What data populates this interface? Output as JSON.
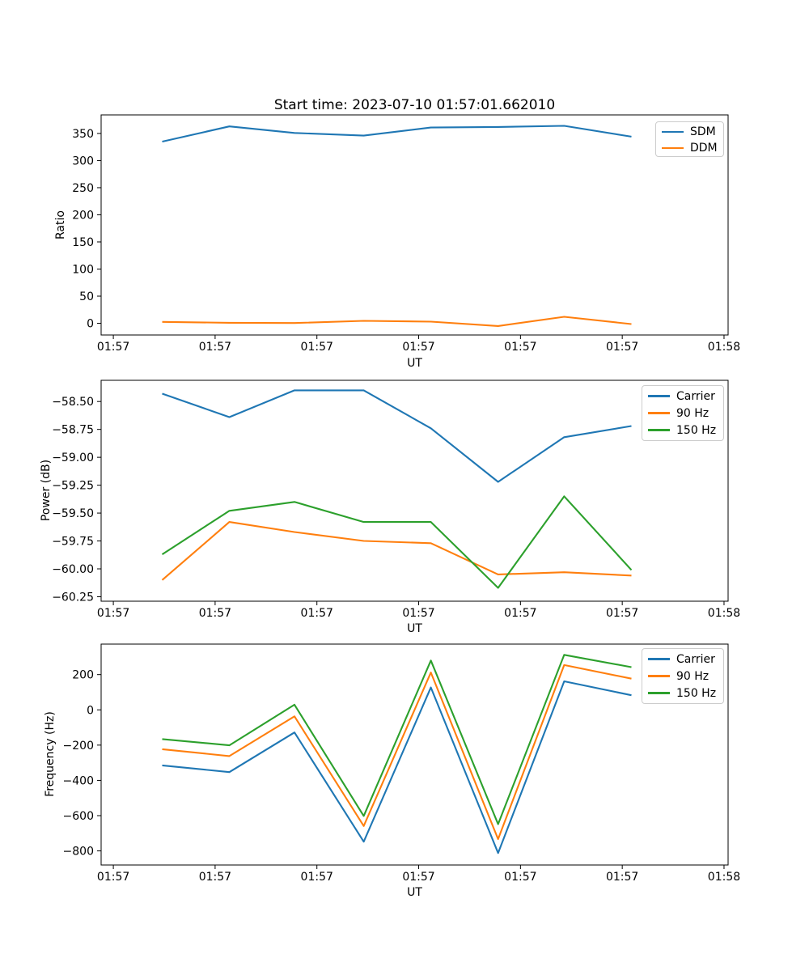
{
  "figure": {
    "title": "Start time: 2023-07-10 01:57:01.662010",
    "background": "#ffffff"
  },
  "colors": {
    "carrier_blue": "#1f77b4",
    "orange_90hz": "#ff7f0e",
    "green_150hz": "#2ca02c",
    "axis": "#000000",
    "legend_border": "#cccccc"
  },
  "chart_data": [
    {
      "id": "ratio",
      "type": "line",
      "title": "Start time: 2023-07-10 01:57:01.662010",
      "xlabel": "UT",
      "ylabel": "Ratio",
      "grid": false,
      "legend_position": "upper right",
      "x_seconds": [
        4.8,
        11.4,
        17.8,
        24.6,
        31.2,
        37.8,
        44.3,
        50.9
      ],
      "xlim": [
        -1.2,
        60.4
      ],
      "ylim": [
        -21.6,
        384.2
      ],
      "xticks": {
        "values": [
          0,
          10,
          20,
          30,
          40,
          50,
          60
        ],
        "labels": [
          "01:57",
          "01:57",
          "01:57",
          "01:57",
          "01:57",
          "01:57",
          "01:58"
        ]
      },
      "yticks": {
        "values": [
          0,
          50,
          100,
          150,
          200,
          250,
          300,
          350
        ],
        "labels": [
          "0",
          "50",
          "100",
          "150",
          "200",
          "250",
          "300",
          "350"
        ]
      },
      "series": [
        {
          "name": "SDM",
          "color": "#1f77b4",
          "values": [
            335,
            363,
            351,
            346,
            361,
            362,
            364,
            344
          ]
        },
        {
          "name": "DDM",
          "color": "#ff7f0e",
          "values": [
            2.5,
            1,
            0.5,
            4.5,
            3,
            -5,
            12,
            -1.5
          ]
        }
      ]
    },
    {
      "id": "power",
      "type": "line",
      "title": "",
      "xlabel": "UT",
      "ylabel": "Power (dB)",
      "grid": false,
      "legend_position": "upper right",
      "x_seconds": [
        4.8,
        11.4,
        17.8,
        24.6,
        31.2,
        37.8,
        44.3,
        50.9
      ],
      "xlim": [
        -1.2,
        60.4
      ],
      "ylim": [
        -60.29,
        -58.31
      ],
      "xticks": {
        "values": [
          0,
          10,
          20,
          30,
          40,
          50,
          60
        ],
        "labels": [
          "01:57",
          "01:57",
          "01:57",
          "01:57",
          "01:57",
          "01:57",
          "01:58"
        ]
      },
      "yticks": {
        "values": [
          -60.25,
          -60.0,
          -59.75,
          -59.5,
          -59.25,
          -59.0,
          -58.75,
          -58.5
        ],
        "labels": [
          "−60.25",
          "−60.00",
          "−59.75",
          "−59.50",
          "−59.25",
          "−59.00",
          "−58.75",
          "−58.50"
        ]
      },
      "series": [
        {
          "name": "Carrier",
          "color": "#1f77b4",
          "values": [
            -58.43,
            -58.64,
            -58.4,
            -58.4,
            -58.74,
            -59.22,
            -58.82,
            -58.72
          ]
        },
        {
          "name": "90 Hz",
          "color": "#ff7f0e",
          "values": [
            -60.1,
            -59.58,
            -59.67,
            -59.75,
            -59.77,
            -60.05,
            -60.03,
            -60.06
          ]
        },
        {
          "name": "150 Hz",
          "color": "#2ca02c",
          "values": [
            -59.87,
            -59.48,
            -59.4,
            -59.58,
            -59.58,
            -60.17,
            -59.35,
            -60.01
          ]
        }
      ]
    },
    {
      "id": "frequency",
      "type": "line",
      "title": "",
      "xlabel": "UT",
      "ylabel": "Frequency (Hz)",
      "grid": false,
      "legend_position": "upper right",
      "x_seconds": [
        4.8,
        11.4,
        17.8,
        24.6,
        31.2,
        37.8,
        44.3,
        50.9
      ],
      "xlim": [
        -1.2,
        60.4
      ],
      "ylim": [
        -880,
        373
      ],
      "xticks": {
        "values": [
          0,
          10,
          20,
          30,
          40,
          50,
          60
        ],
        "labels": [
          "01:57",
          "01:57",
          "01:57",
          "01:57",
          "01:57",
          "01:57",
          "01:58"
        ]
      },
      "yticks": {
        "values": [
          -800,
          -600,
          -400,
          -200,
          0,
          200
        ],
        "labels": [
          "−800",
          "−600",
          "−400",
          "−200",
          "0",
          "200"
        ]
      },
      "series": [
        {
          "name": "Carrier",
          "color": "#1f77b4",
          "values": [
            -315,
            -353,
            -128,
            -748,
            127,
            -812,
            162,
            83
          ]
        },
        {
          "name": "90 Hz",
          "color": "#ff7f0e",
          "values": [
            -223,
            -262,
            -37,
            -659,
            212,
            -733,
            254,
            177
          ]
        },
        {
          "name": "150 Hz",
          "color": "#2ca02c",
          "values": [
            -166,
            -201,
            29,
            -602,
            280,
            -648,
            312,
            242
          ]
        }
      ]
    }
  ]
}
